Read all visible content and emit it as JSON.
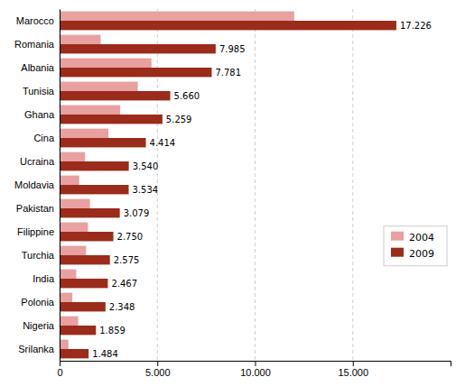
{
  "chart_data": {
    "type": "bar",
    "orientation": "horizontal",
    "categories": [
      "Marocco",
      "Romania",
      "Albania",
      "Tunisia",
      "Ghana",
      "Cina",
      "Ucraina",
      "Moldavia",
      "Pakistan",
      "Filippine",
      "Turchia",
      "India",
      "Polonia",
      "Nigeria",
      "Srilanka"
    ],
    "series": [
      {
        "name": "2004",
        "color": "#e8a0a0",
        "values": [
          12000,
          2100,
          4700,
          4000,
          3100,
          2500,
          1300,
          1000,
          1550,
          1450,
          1350,
          850,
          650,
          950,
          450
        ]
      },
      {
        "name": "2009",
        "color": "#9b2b1a",
        "values": [
          17226,
          7985,
          7781,
          5660,
          5259,
          4414,
          3540,
          3534,
          3079,
          2750,
          2575,
          2467,
          2348,
          1859,
          1484
        ],
        "value_labels": [
          "17.226",
          "7.985",
          "7.781",
          "5.660",
          "5.259",
          "4.414",
          "3.540",
          "3.534",
          "3.079",
          "2.750",
          "2.575",
          "2.467",
          "2.348",
          "1.859",
          "1.484"
        ]
      }
    ],
    "xlim": [
      0,
      20000
    ],
    "xticks": [
      0,
      {
        "value": 5000,
        "label": "5.000"
      },
      {
        "value": 10000,
        "label": "10.000"
      },
      {
        "value": 15000,
        "label": "15.000"
      }
    ],
    "grid": true,
    "legend": "lower right",
    "data_labels": true
  }
}
